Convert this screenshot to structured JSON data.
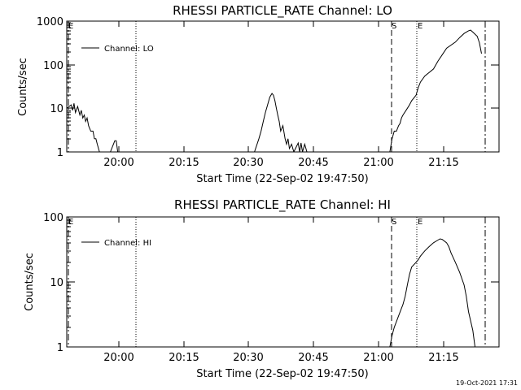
{
  "footer": {
    "timestamp": "19-Oct-2021 17:31"
  },
  "chart_data": [
    {
      "type": "line",
      "title": "RHESSI PARTICLE_RATE Channel: LO",
      "xlabel": "Start Time (22-Sep-02 19:47:50)",
      "ylabel": "Counts/sec",
      "y_scale": "log",
      "ylim": [
        1,
        1000
      ],
      "xlim": [
        "19:48",
        "21:27"
      ],
      "x_tick_labels": [
        "20:00",
        "20:15",
        "20:30",
        "20:45",
        "21:00",
        "21:15"
      ],
      "y_tick_labels": [
        "1",
        "10",
        "100",
        "1000"
      ],
      "legend": {
        "label": "Channel: LO",
        "position": "top-left"
      },
      "markers": [
        {
          "label": "E",
          "time": "19:48",
          "style": "dash-dot"
        },
        {
          "label": "",
          "time": "20:04",
          "style": "dotted"
        },
        {
          "label": "S",
          "time": "21:02",
          "style": "dashed"
        },
        {
          "label": "E",
          "time": "21:08",
          "style": "dotted"
        },
        {
          "label": "",
          "time": "21:23",
          "style": "dash-dot"
        }
      ],
      "series": [
        {
          "name": "Channel: LO",
          "points": [
            [
              "19:48",
              10
            ],
            [
              "19:49",
              12
            ],
            [
              "19:49",
              9
            ],
            [
              "19:49",
              13
            ],
            [
              "19:50",
              8
            ],
            [
              "19:50",
              11
            ],
            [
              "19:51",
              7
            ],
            [
              "19:51",
              9
            ],
            [
              "19:51",
              6
            ],
            [
              "19:52",
              7
            ],
            [
              "19:52",
              5
            ],
            [
              "19:52",
              6
            ],
            [
              "19:53",
              4
            ],
            [
              "19:53",
              3
            ],
            [
              "19:54",
              3
            ],
            [
              "19:54",
              2
            ],
            [
              "19:54",
              2
            ],
            [
              "19:55",
              1.5
            ],
            [
              "19:55",
              1
            ],
            [
              null,
              null
            ],
            [
              "19:58",
              1
            ],
            [
              "19:59",
              1.8
            ],
            [
              "19:59",
              1.8
            ],
            [
              "19:59",
              1
            ],
            [
              null,
              null
            ],
            [
              "20:31",
              1
            ],
            [
              "20:32",
              2
            ],
            [
              "20:32",
              3
            ],
            [
              "20:33",
              5
            ],
            [
              "20:33",
              8
            ],
            [
              "20:34",
              12
            ],
            [
              "20:34",
              18
            ],
            [
              "20:35",
              22
            ],
            [
              "20:35",
              20
            ],
            [
              "20:35",
              15
            ],
            [
              "20:36",
              10
            ],
            [
              "20:36",
              7
            ],
            [
              "20:36",
              5
            ],
            [
              "20:37",
              3
            ],
            [
              "20:37",
              4
            ],
            [
              "20:38",
              2
            ],
            [
              "20:38",
              1.5
            ],
            [
              "20:38",
              2
            ],
            [
              "20:39",
              1.2
            ],
            [
              "20:39",
              1.5
            ],
            [
              "20:40",
              1
            ],
            [
              null,
              null
            ],
            [
              "20:40",
              1
            ],
            [
              "20:41",
              1.6
            ],
            [
              "20:41",
              1
            ],
            [
              "20:41",
              1.6
            ],
            [
              "20:42",
              1
            ],
            [
              "20:42",
              1.5
            ],
            [
              "20:43",
              1
            ],
            [
              null,
              null
            ],
            [
              "21:02",
              1
            ],
            [
              "21:02",
              2
            ],
            [
              "21:03",
              3
            ],
            [
              "21:03",
              3
            ],
            [
              "21:04",
              4
            ],
            [
              "21:04",
              4.5
            ],
            [
              "21:04",
              6
            ],
            [
              "21:05",
              7
            ],
            [
              "21:06",
              10
            ],
            [
              "21:06",
              12
            ],
            [
              "21:07",
              15
            ],
            [
              "21:08",
              20
            ],
            [
              "21:08",
              30
            ],
            [
              "21:09",
              40
            ],
            [
              "21:10",
              55
            ],
            [
              "21:12",
              80
            ],
            [
              "21:13",
              120
            ],
            [
              "21:14",
              170
            ],
            [
              "21:15",
              240
            ],
            [
              "21:17",
              330
            ],
            [
              "21:18",
              420
            ],
            [
              "21:19",
              520
            ],
            [
              "21:20",
              600
            ],
            [
              "21:20",
              620
            ],
            [
              "21:21",
              560
            ],
            [
              "21:22",
              450
            ],
            [
              "21:22",
              320
            ],
            [
              "21:23",
              180
            ]
          ]
        }
      ]
    },
    {
      "type": "line",
      "title": "RHESSI PARTICLE_RATE Channel: HI",
      "xlabel": "Start Time (22-Sep-02 19:47:50)",
      "ylabel": "Counts/sec",
      "y_scale": "log",
      "ylim": [
        1,
        100
      ],
      "xlim": [
        "19:48",
        "21:27"
      ],
      "x_tick_labels": [
        "20:00",
        "20:15",
        "20:30",
        "20:45",
        "21:00",
        "21:15"
      ],
      "y_tick_labels": [
        "1",
        "10",
        "100"
      ],
      "legend": {
        "label": "Channel: HI",
        "position": "top-left"
      },
      "markers": [
        {
          "label": "E",
          "time": "19:48",
          "style": "dash-dot"
        },
        {
          "label": "",
          "time": "20:04",
          "style": "dotted"
        },
        {
          "label": "S",
          "time": "21:02",
          "style": "dashed"
        },
        {
          "label": "E",
          "time": "21:08",
          "style": "dotted"
        },
        {
          "label": "",
          "time": "21:23",
          "style": "dash-dot"
        }
      ],
      "series": [
        {
          "name": "Channel: HI",
          "points": [
            [
              "21:02",
              1
            ],
            [
              "21:02",
              1.5
            ],
            [
              "21:03",
              2
            ],
            [
              "21:04",
              3
            ],
            [
              "21:05",
              4.5
            ],
            [
              "21:05",
              6
            ],
            [
              "21:06",
              9
            ],
            [
              "21:06",
              13
            ],
            [
              "21:07",
              17
            ],
            [
              "21:08",
              20
            ],
            [
              "21:08",
              22
            ],
            [
              "21:09",
              25
            ],
            [
              "21:10",
              30
            ],
            [
              "21:11",
              35
            ],
            [
              "21:12",
              40
            ],
            [
              "21:13",
              44
            ],
            [
              "21:13",
              46
            ],
            [
              "21:14",
              45
            ],
            [
              "21:15",
              40
            ],
            [
              "21:15",
              35
            ],
            [
              "21:16",
              28
            ],
            [
              "21:17",
              20
            ],
            [
              "21:18",
              14
            ],
            [
              "21:19",
              9
            ],
            [
              "21:19",
              6
            ],
            [
              "21:20",
              3.5
            ],
            [
              "21:21",
              1.8
            ],
            [
              "21:21",
              1
            ]
          ]
        }
      ]
    }
  ]
}
